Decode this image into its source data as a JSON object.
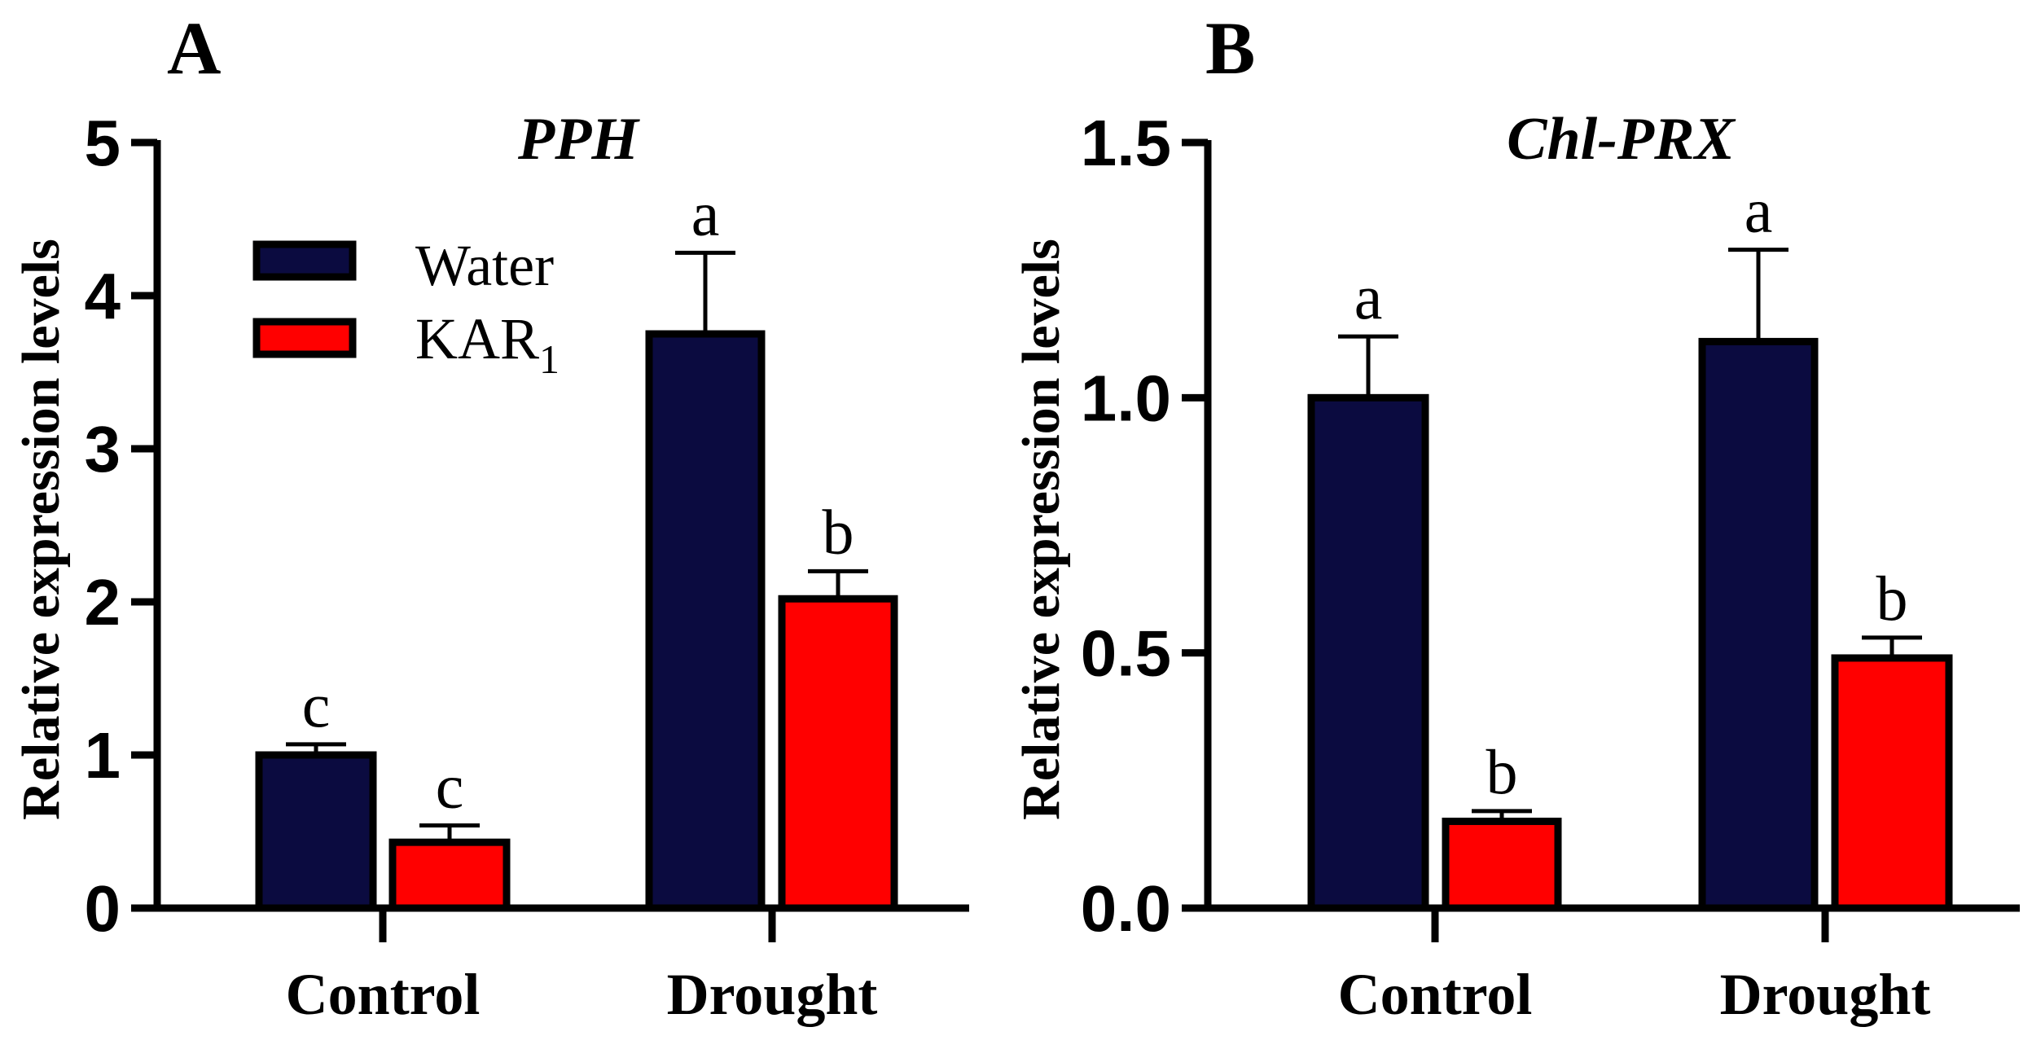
{
  "legend": {
    "water_label": "Water",
    "kar_label": "KAR",
    "kar_subscript": "1"
  },
  "colors": {
    "water": "#0b0b40",
    "kar1": "#ff0000",
    "stroke": "#000000"
  },
  "chart_data": [
    {
      "panel": "A",
      "type": "bar",
      "title": "PPH",
      "ylabel": "Relative expression levels",
      "xlabel": "",
      "categories": [
        "Control",
        "Drought"
      ],
      "ylim": [
        0,
        5
      ],
      "yticks": [
        0,
        1,
        2,
        3,
        4,
        5
      ],
      "ytick_labels": [
        "0",
        "1",
        "2",
        "3",
        "4",
        "5"
      ],
      "series": [
        {
          "name": "Water",
          "values": [
            1.0,
            3.75
          ],
          "errors": [
            0.07,
            0.53
          ],
          "letters": [
            "c",
            "a"
          ]
        },
        {
          "name": "KAR1",
          "values": [
            0.43,
            2.02
          ],
          "errors": [
            0.11,
            0.18
          ],
          "letters": [
            "c",
            "b"
          ]
        }
      ]
    },
    {
      "panel": "B",
      "type": "bar",
      "title": "Chl-PRX",
      "ylabel": "Relative expression levels",
      "xlabel": "",
      "categories": [
        "Control",
        "Drought"
      ],
      "ylim": [
        0,
        1.5
      ],
      "yticks": [
        0,
        0.5,
        1.0,
        1.5
      ],
      "ytick_labels": [
        "0.0",
        "0.5",
        "1.0",
        "1.5"
      ],
      "series": [
        {
          "name": "Water",
          "values": [
            1.0,
            1.11
          ],
          "errors": [
            0.12,
            0.18
          ],
          "letters": [
            "a",
            "a"
          ]
        },
        {
          "name": "KAR1",
          "values": [
            0.17,
            0.49
          ],
          "errors": [
            0.02,
            0.04
          ],
          "letters": [
            "b",
            "b"
          ]
        }
      ]
    }
  ]
}
